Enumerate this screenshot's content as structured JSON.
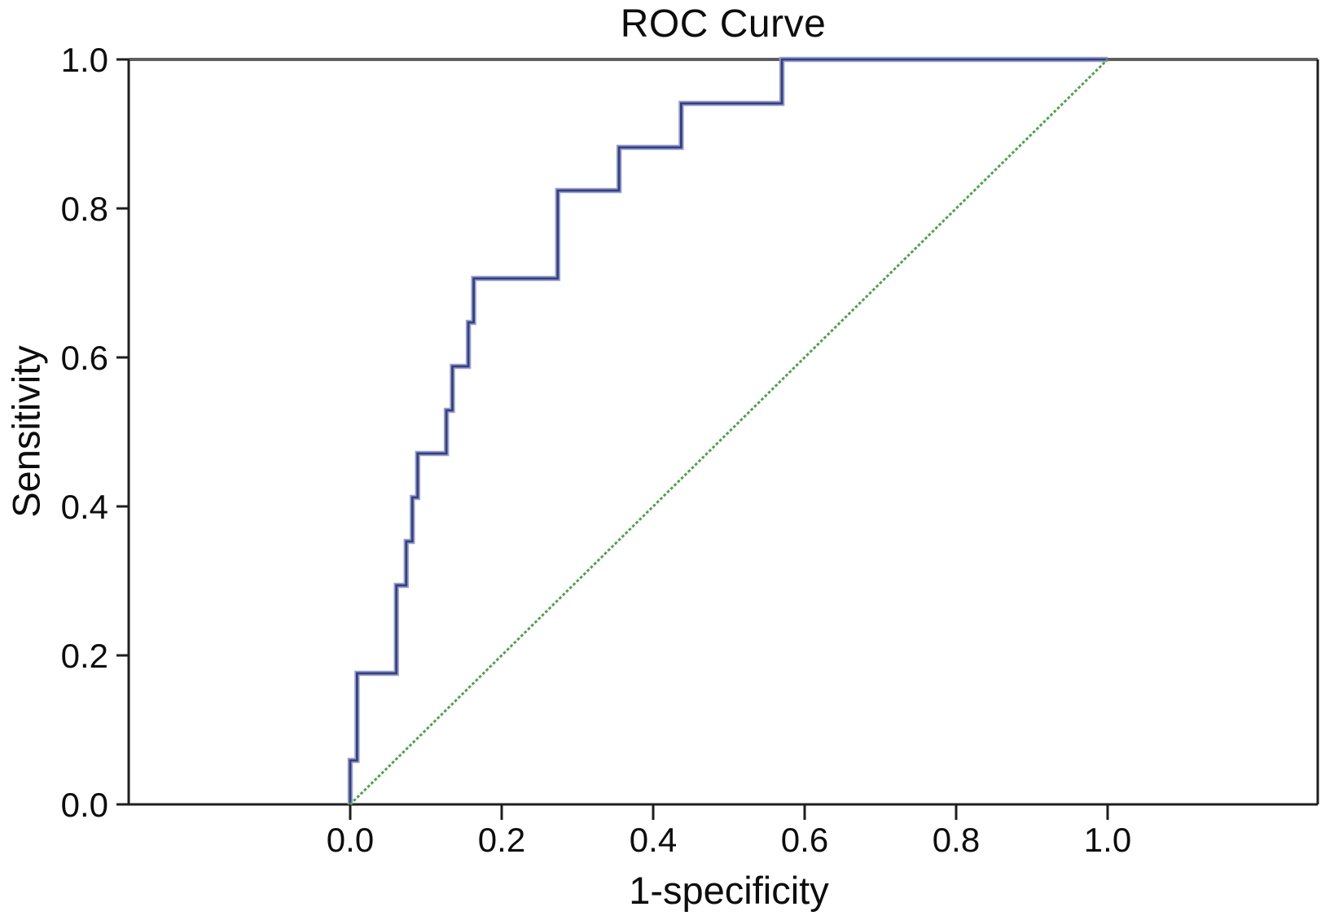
{
  "title": "ROC Curve",
  "chart_data": {
    "type": "line",
    "title": "ROC Curve",
    "xlabel": "1-specificity",
    "ylabel": "Sensitivity",
    "xlim": [
      0.0,
      1.0
    ],
    "ylim": [
      0.0,
      1.0
    ],
    "grid": false,
    "legend_position": "none",
    "x_ticks": [
      0.0,
      0.2,
      0.4,
      0.6,
      0.8,
      1.0
    ],
    "y_ticks": [
      0.0,
      0.2,
      0.4,
      0.6,
      0.8,
      1.0
    ],
    "x_tick_labels": [
      "0.0",
      "0.2",
      "0.4",
      "0.6",
      "0.8",
      "1.0"
    ],
    "y_tick_labels": [
      "0.0",
      "0.2",
      "0.4",
      "0.6",
      "0.8",
      "1.0"
    ],
    "series": [
      {
        "name": "ROC curve",
        "draw_style": "step",
        "line_style": "solid",
        "color": "#353f80",
        "halo_color": "#99a2cd",
        "points": [
          [
            0.0,
            0.0
          ],
          [
            0.0,
            0.059
          ],
          [
            0.009,
            0.059
          ],
          [
            0.009,
            0.176
          ],
          [
            0.061,
            0.176
          ],
          [
            0.061,
            0.294
          ],
          [
            0.074,
            0.294
          ],
          [
            0.074,
            0.353
          ],
          [
            0.082,
            0.353
          ],
          [
            0.082,
            0.412
          ],
          [
            0.089,
            0.412
          ],
          [
            0.089,
            0.471
          ],
          [
            0.127,
            0.471
          ],
          [
            0.127,
            0.529
          ],
          [
            0.135,
            0.529
          ],
          [
            0.135,
            0.588
          ],
          [
            0.156,
            0.588
          ],
          [
            0.156,
            0.647
          ],
          [
            0.163,
            0.647
          ],
          [
            0.163,
            0.706
          ],
          [
            0.274,
            0.706
          ],
          [
            0.274,
            0.824
          ],
          [
            0.355,
            0.824
          ],
          [
            0.355,
            0.882
          ],
          [
            0.437,
            0.882
          ],
          [
            0.437,
            0.941
          ],
          [
            0.57,
            0.941
          ],
          [
            0.57,
            1.0
          ],
          [
            1.0,
            1.0
          ]
        ]
      },
      {
        "name": "Chance diagonal",
        "draw_style": "line",
        "line_style": "dotted",
        "color": "#4ea24e",
        "halo_color": null,
        "points": [
          [
            0.0,
            0.0
          ],
          [
            1.0,
            1.0
          ]
        ]
      }
    ]
  }
}
